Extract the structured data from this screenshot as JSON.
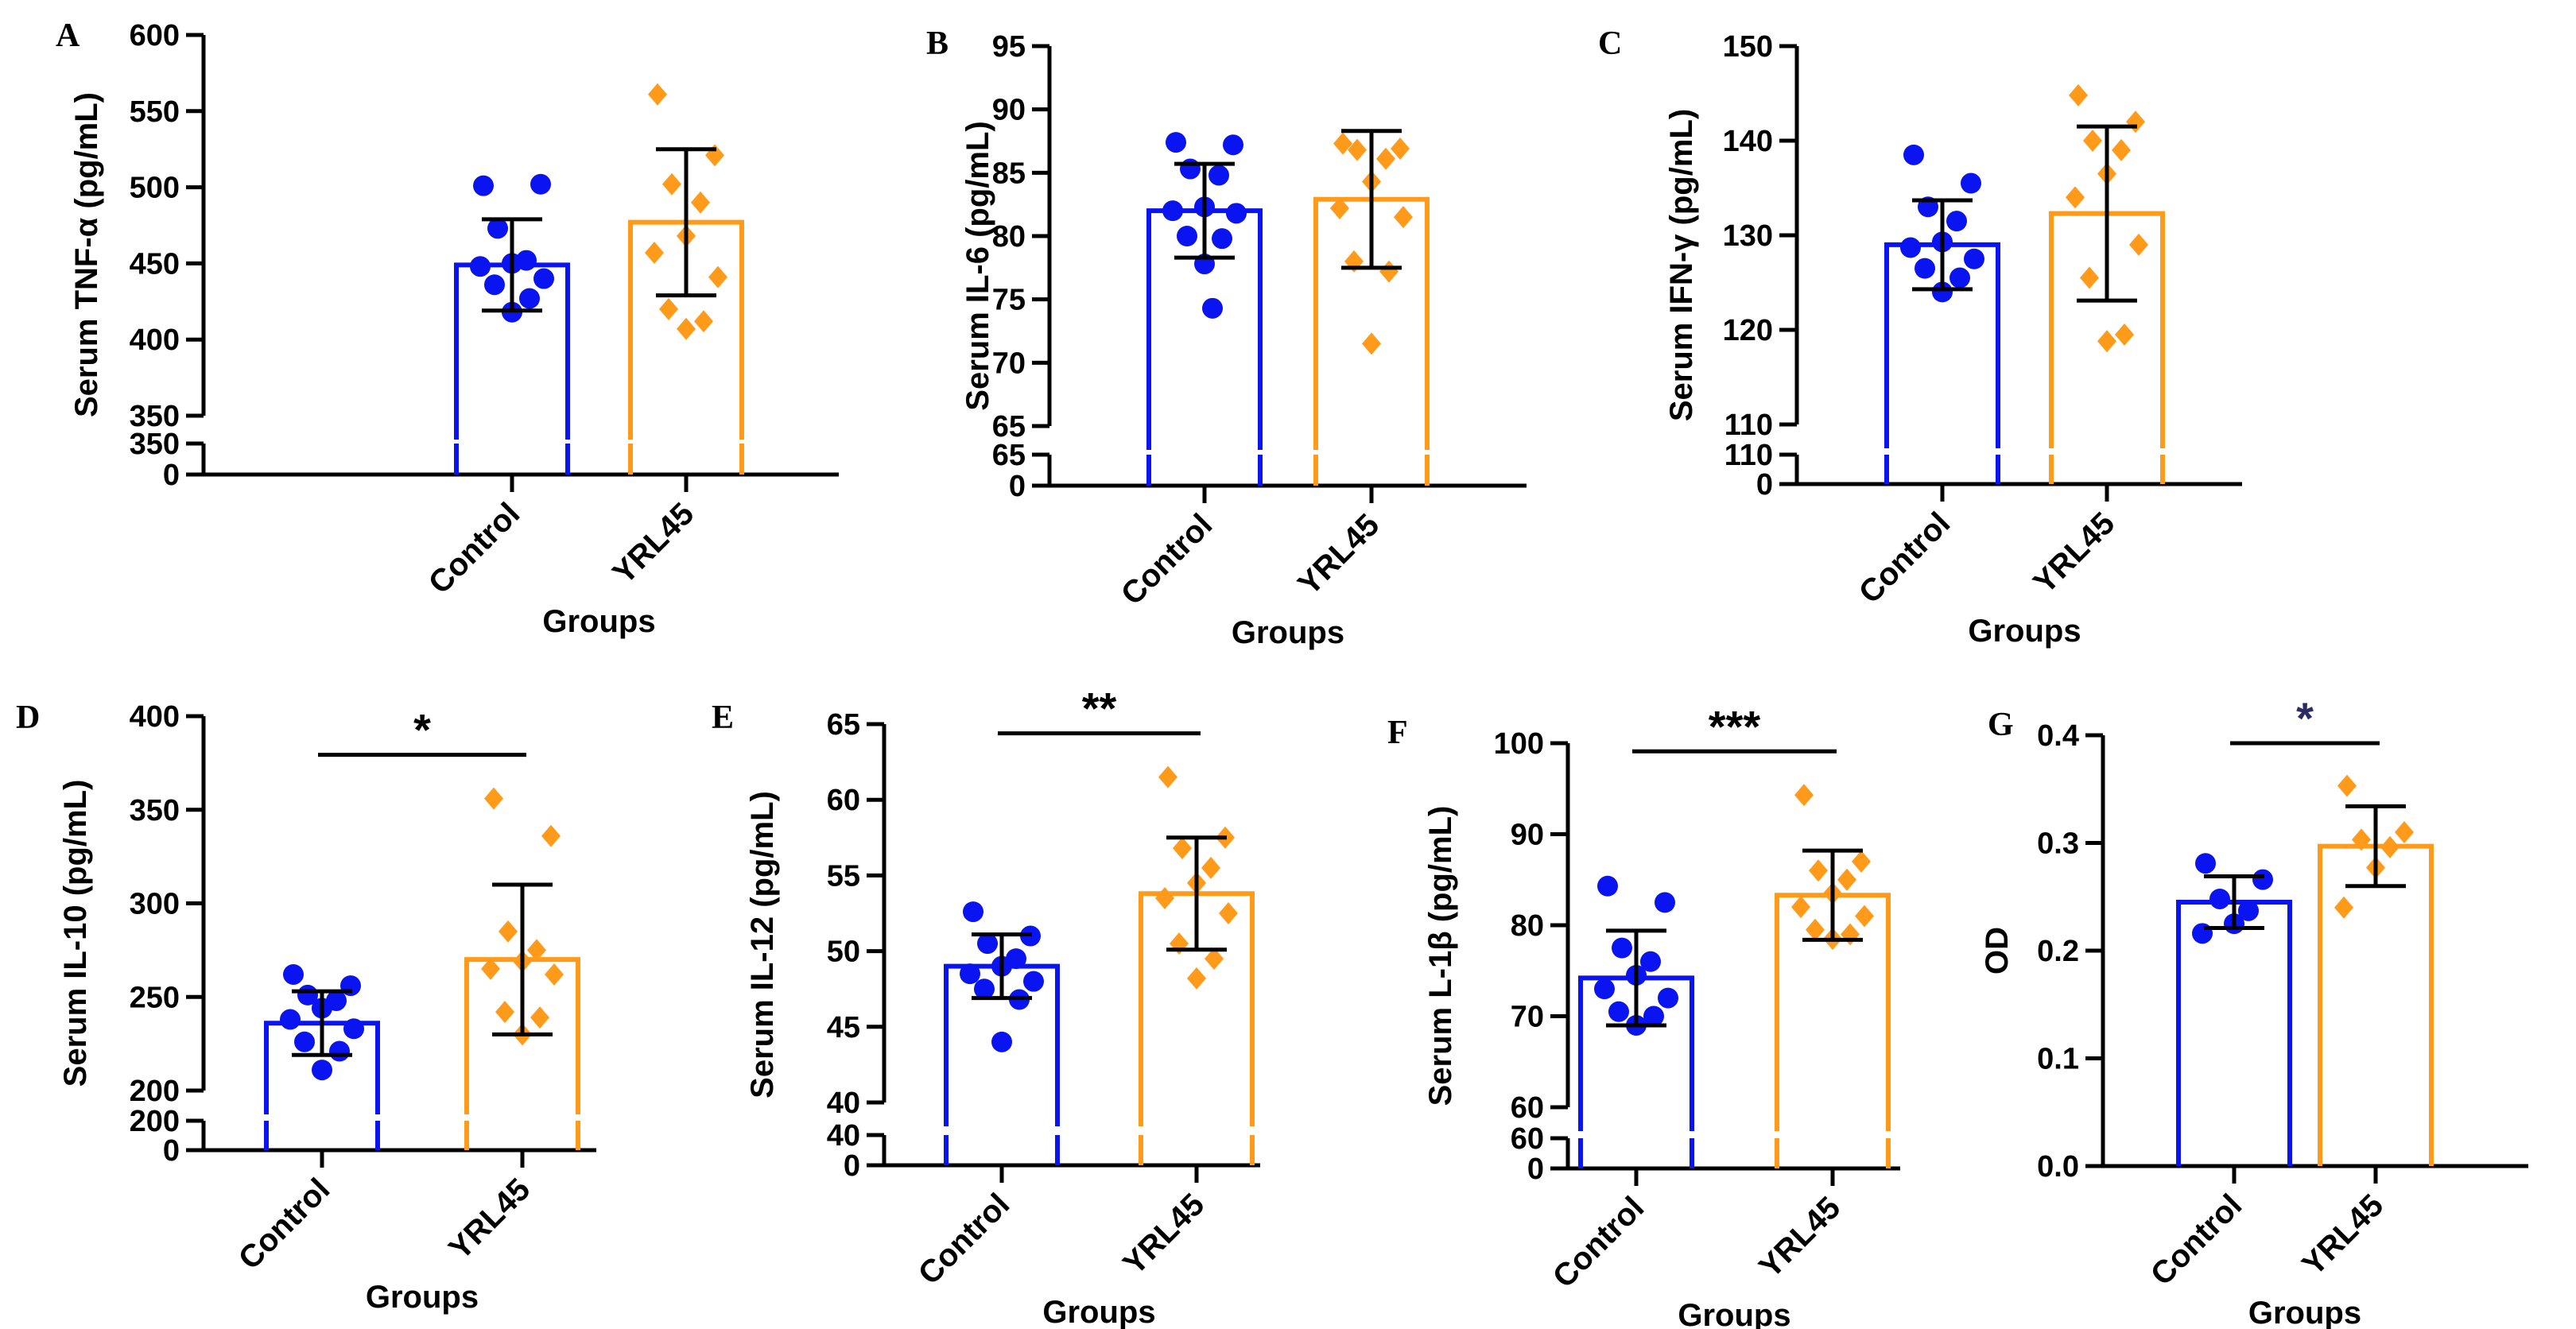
{
  "colors": {
    "control": "#0a14f0",
    "yrl45": "#ff9a1a",
    "sig_g": "#2b2b66"
  },
  "chart_data": [
    {
      "panel": "A",
      "type": "bar",
      "title": "",
      "ylabel": "Serum TNF-α (pg/mL)",
      "xlabel": "Groups",
      "categories": [
        "Control",
        "YRL45"
      ],
      "ylim": [
        350,
        600
      ],
      "yticks": [
        "600",
        "550",
        "500",
        "450",
        "400",
        "350"
      ],
      "broken_axis": true,
      "lower_ticks": [
        "350",
        "0"
      ],
      "series": [
        {
          "name": "Control",
          "mean": 449,
          "sd": 30,
          "marker": "circle",
          "points": [
            501,
            502,
            473,
            452,
            450,
            448,
            440,
            436,
            427,
            418
          ]
        },
        {
          "name": "YRL45",
          "mean": 477,
          "sd": 48,
          "marker": "diamond",
          "points": [
            561,
            521,
            502,
            490,
            468,
            457,
            441,
            420,
            412,
            407
          ]
        }
      ],
      "significance": null
    },
    {
      "panel": "B",
      "type": "bar",
      "title": "",
      "ylabel": "Serum IL-6 (pg/mL)",
      "xlabel": "Groups",
      "categories": [
        "Control",
        "YRL45"
      ],
      "ylim": [
        65,
        95
      ],
      "yticks": [
        "95",
        "90",
        "85",
        "80",
        "75",
        "70",
        "65"
      ],
      "broken_axis": true,
      "lower_ticks": [
        "65",
        "0"
      ],
      "series": [
        {
          "name": "Control",
          "mean": 82,
          "sd": 3.7,
          "marker": "circle",
          "points": [
            87.4,
            87.2,
            85.3,
            84.8,
            82.3,
            82.0,
            81.8,
            80.0,
            79.8,
            77.8,
            74.3
          ]
        },
        {
          "name": "YRL45",
          "mean": 82.9,
          "sd": 5.4,
          "marker": "diamond",
          "points": [
            87.3,
            86.9,
            86.8,
            86.1,
            84.3,
            82.2,
            81.5,
            78.0,
            77.2,
            71.5
          ]
        }
      ],
      "significance": null
    },
    {
      "panel": "C",
      "type": "bar",
      "title": "",
      "ylabel": "Serum IFN-γ (pg/mL)",
      "xlabel": "Groups",
      "categories": [
        "Control",
        "YRL45"
      ],
      "ylim": [
        110,
        150
      ],
      "yticks": [
        "150",
        "140",
        "130",
        "120",
        "110"
      ],
      "broken_axis": true,
      "lower_ticks": [
        "110",
        "0"
      ],
      "series": [
        {
          "name": "Control",
          "mean": 129,
          "sd": 4.7,
          "marker": "circle",
          "points": [
            138.5,
            135.5,
            133.0,
            131.5,
            129.3,
            128.7,
            127.5,
            126.5,
            125.5,
            124.0
          ]
        },
        {
          "name": "YRL45",
          "mean": 132.3,
          "sd": 9.2,
          "marker": "diamond",
          "points": [
            144.8,
            142.0,
            140.0,
            139.0,
            136.5,
            134.0,
            129.0,
            125.5,
            119.5,
            118.8
          ]
        }
      ],
      "significance": null
    },
    {
      "panel": "D",
      "type": "bar",
      "title": "",
      "ylabel": "Serum IL-10 (pg/mL)",
      "xlabel": "Groups",
      "categories": [
        "Control",
        "YRL45"
      ],
      "ylim": [
        200,
        400
      ],
      "yticks": [
        "400",
        "350",
        "300",
        "250",
        "200"
      ],
      "broken_axis": true,
      "lower_ticks": [
        "200",
        "0"
      ],
      "series": [
        {
          "name": "Control",
          "mean": 236,
          "sd": 17,
          "marker": "circle",
          "points": [
            262,
            256,
            251,
            248,
            244,
            238,
            233,
            226,
            221,
            211
          ]
        },
        {
          "name": "YRL45",
          "mean": 270,
          "sd": 40,
          "marker": "diamond",
          "points": [
            356,
            336,
            285,
            275,
            269,
            265,
            262,
            242,
            239,
            230
          ]
        }
      ],
      "significance": "*"
    },
    {
      "panel": "E",
      "type": "bar",
      "title": "",
      "ylabel": "Serum IL-12 (pg/mL)",
      "xlabel": "Groups",
      "categories": [
        "Control",
        "YRL45"
      ],
      "ylim": [
        40,
        65
      ],
      "yticks": [
        "65",
        "60",
        "55",
        "50",
        "45",
        "40"
      ],
      "broken_axis": true,
      "lower_ticks": [
        "40",
        "0"
      ],
      "series": [
        {
          "name": "Control",
          "mean": 49,
          "sd": 2.1,
          "marker": "circle",
          "points": [
            52.6,
            51.0,
            50.5,
            49.5,
            49.0,
            48.5,
            48.0,
            47.5,
            46.8,
            44.0
          ]
        },
        {
          "name": "YRL45",
          "mean": 53.8,
          "sd": 3.7,
          "marker": "diamond",
          "points": [
            61.5,
            57.5,
            56.8,
            55.5,
            54.5,
            53.5,
            52.5,
            50.5,
            49.5,
            48.2
          ]
        }
      ],
      "significance": "**"
    },
    {
      "panel": "F",
      "type": "bar",
      "title": "",
      "ylabel": "Serum L-1β (pg/mL)",
      "xlabel": "Groups",
      "categories": [
        "Control",
        "YRL45"
      ],
      "ylim": [
        60,
        100
      ],
      "yticks": [
        "100",
        "90",
        "80",
        "70",
        "60"
      ],
      "broken_axis": true,
      "lower_ticks": [
        "60",
        "0"
      ],
      "series": [
        {
          "name": "Control",
          "mean": 74.2,
          "sd": 5.2,
          "marker": "circle",
          "points": [
            84.3,
            82.5,
            77.5,
            76.0,
            74.5,
            73.0,
            72.0,
            70.5,
            70.0,
            69.0
          ]
        },
        {
          "name": "YRL45",
          "mean": 83.3,
          "sd": 4.9,
          "marker": "diamond",
          "points": [
            94.3,
            87.0,
            86.0,
            85.0,
            83.5,
            82.0,
            81.0,
            79.5,
            79.0,
            78.5
          ]
        }
      ],
      "significance": "***"
    },
    {
      "panel": "G",
      "type": "bar",
      "title": "",
      "ylabel": "OD",
      "xlabel": "Groups",
      "categories": [
        "Control",
        "YRL45"
      ],
      "ylim": [
        0,
        0.4
      ],
      "yticks": [
        "0.4",
        "0.3",
        "0.2",
        "0.1",
        "0.0"
      ],
      "broken_axis": false,
      "lower_ticks": [],
      "series": [
        {
          "name": "Control",
          "mean": 0.245,
          "sd": 0.024,
          "marker": "circle",
          "points": [
            0.281,
            0.266,
            0.248,
            0.237,
            0.225,
            0.216
          ]
        },
        {
          "name": "YRL45",
          "mean": 0.297,
          "sd": 0.037,
          "marker": "diamond",
          "points": [
            0.353,
            0.31,
            0.303,
            0.296,
            0.277,
            0.24
          ]
        }
      ],
      "significance": "*"
    }
  ]
}
